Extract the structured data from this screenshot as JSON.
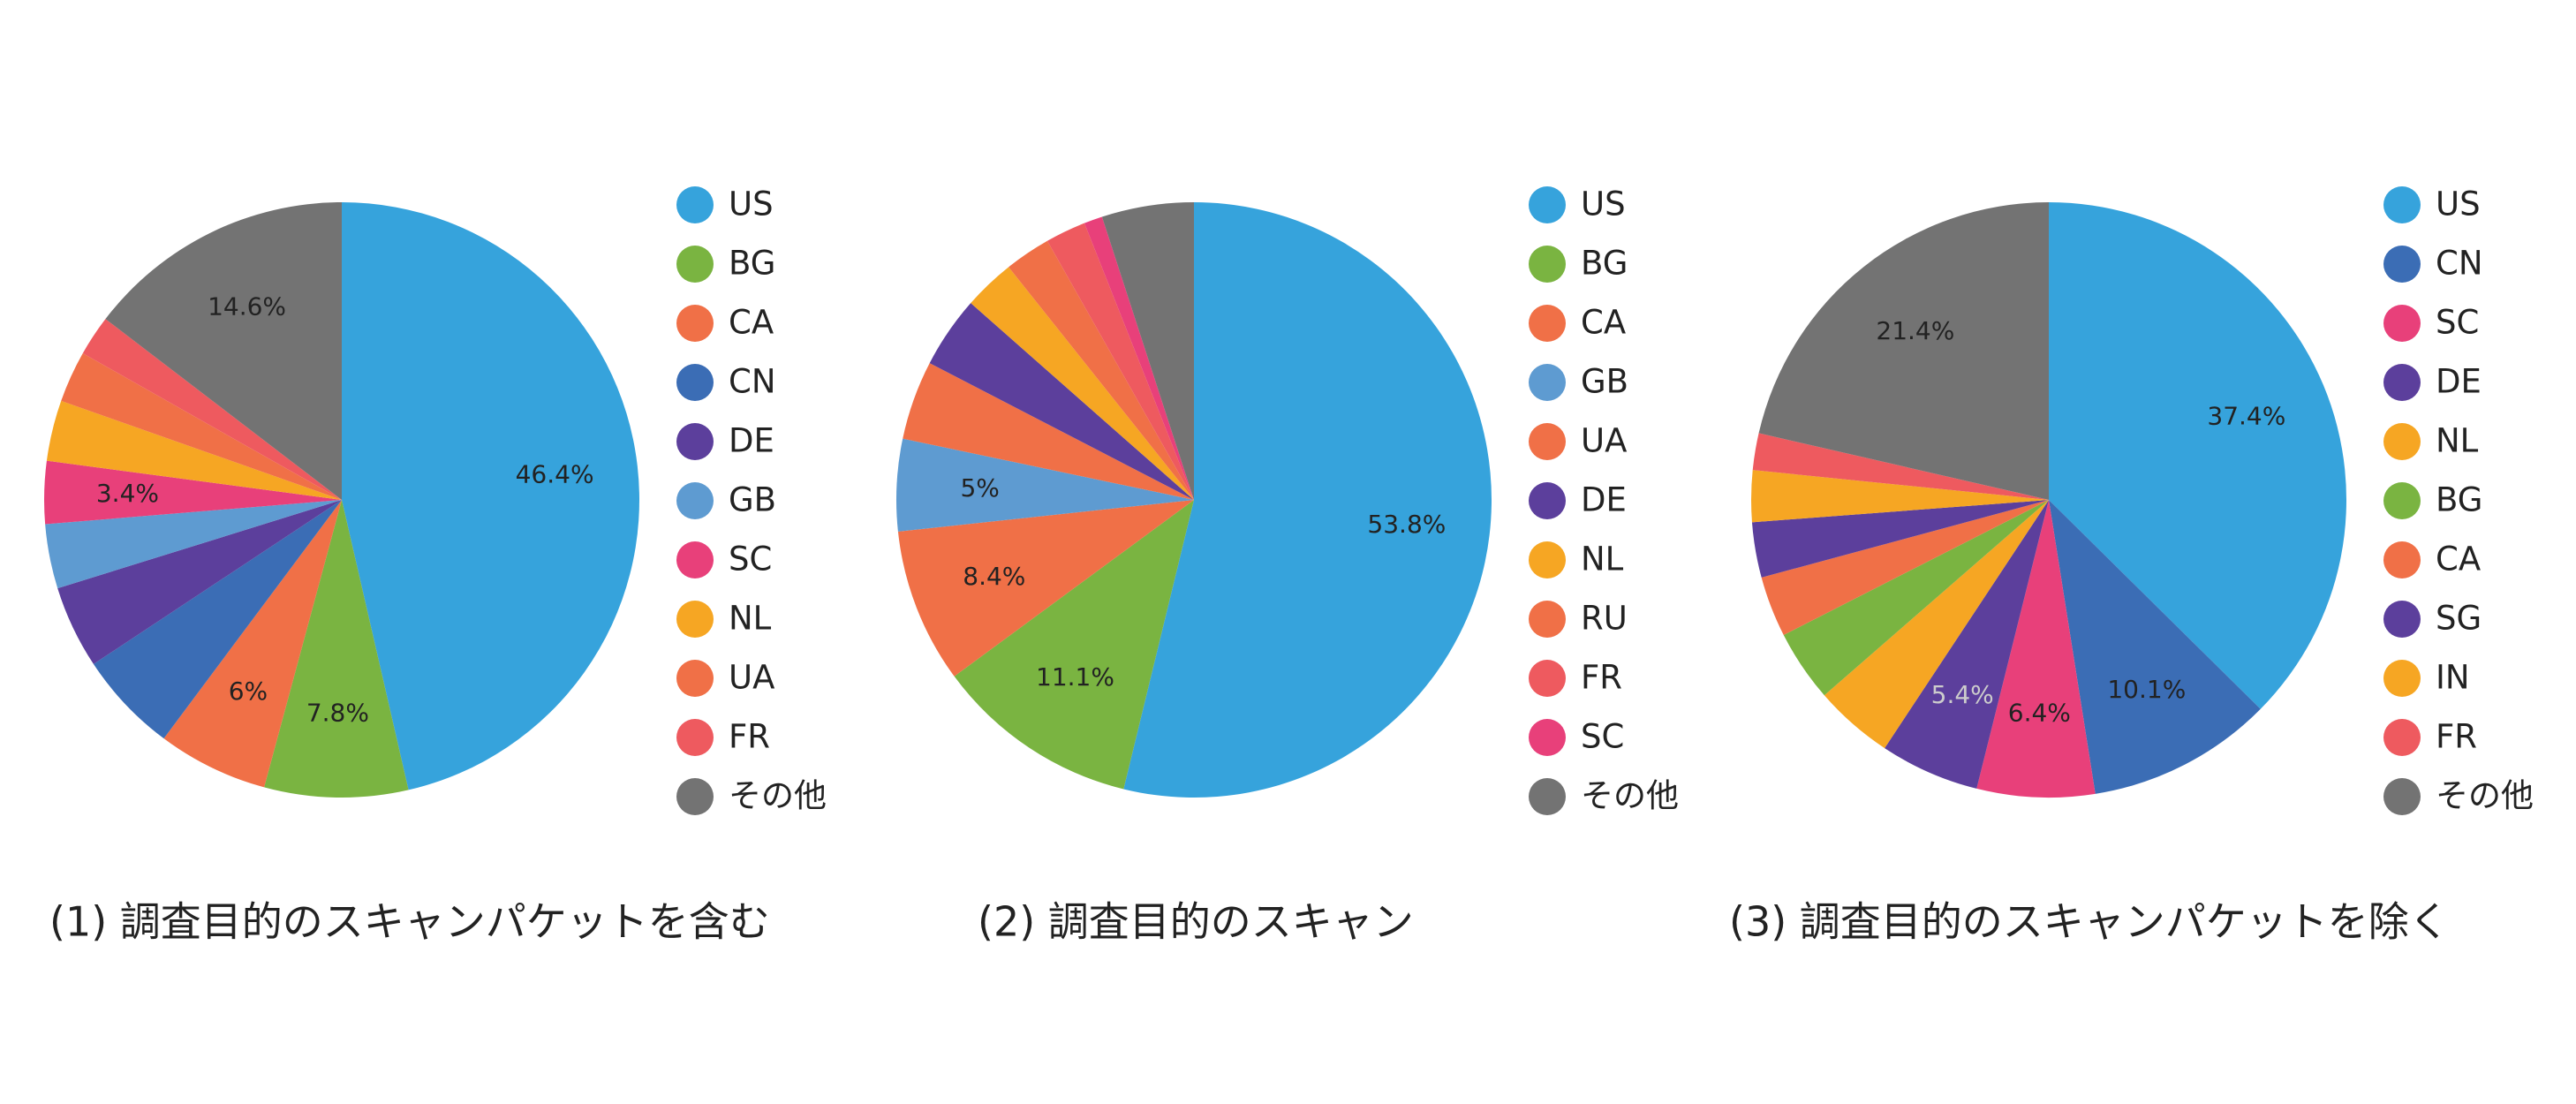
{
  "chart_data": [
    {
      "type": "pie",
      "title": "(1) 調査目的のスキャンパケットを含む",
      "categories": [
        "US",
        "BG",
        "CA",
        "CN",
        "DE",
        "GB",
        "SC",
        "NL",
        "UA",
        "FR",
        "その他"
      ],
      "values": [
        46.4,
        7.8,
        6,
        5.5,
        4.5,
        3.5,
        3.4,
        3.3,
        2.8,
        2.2,
        14.6
      ],
      "value_labels": [
        "46.4%",
        "7.8%",
        "6%",
        null,
        null,
        null,
        "3.4%",
        null,
        null,
        null,
        "14.6%"
      ],
      "colors": [
        "#36a3dc",
        "#7ab441",
        "#f07047",
        "#3b6db5",
        "#5c3f9c",
        "#5e9bd1",
        "#e8407a",
        "#f6a623",
        "#f07047",
        "#ee5a5f",
        "#737373"
      ]
    },
    {
      "type": "pie",
      "title": "(2) 調査目的のスキャン",
      "categories": [
        "US",
        "BG",
        "CA",
        "GB",
        "UA",
        "DE",
        "NL",
        "RU",
        "FR",
        "SC",
        "その他"
      ],
      "values": [
        53.8,
        11.1,
        8.4,
        5,
        4.3,
        3.9,
        2.8,
        2.5,
        2.2,
        1.0,
        5.0
      ],
      "value_labels": [
        "53.8%",
        "11.1%",
        "8.4%",
        "5%",
        null,
        null,
        null,
        null,
        null,
        null,
        null
      ],
      "colors": [
        "#36a3dc",
        "#7ab441",
        "#f07047",
        "#5e9bd1",
        "#f07047",
        "#5c3f9c",
        "#f6a623",
        "#f07047",
        "#ee5a5f",
        "#e8407a",
        "#737373"
      ]
    },
    {
      "type": "pie",
      "title": "(3) 調査目的のスキャンパケットを除く",
      "categories": [
        "US",
        "CN",
        "SC",
        "DE",
        "NL",
        "BG",
        "CA",
        "SG",
        "IN",
        "FR",
        "その他"
      ],
      "values": [
        37.4,
        10.1,
        6.4,
        5.4,
        4.3,
        3.9,
        3.3,
        3.0,
        2.8,
        2.0,
        21.4
      ],
      "value_labels": [
        "37.4%",
        "10.1%",
        "6.4%",
        "5.4%",
        null,
        null,
        null,
        null,
        null,
        null,
        "21.4%"
      ],
      "colors": [
        "#36a3dc",
        "#3b6db5",
        "#e8407a",
        "#5c3f9c",
        "#f6a623",
        "#7ab441",
        "#f07047",
        "#5c3f9c",
        "#f6a623",
        "#ee5a5f",
        "#737373"
      ]
    }
  ]
}
